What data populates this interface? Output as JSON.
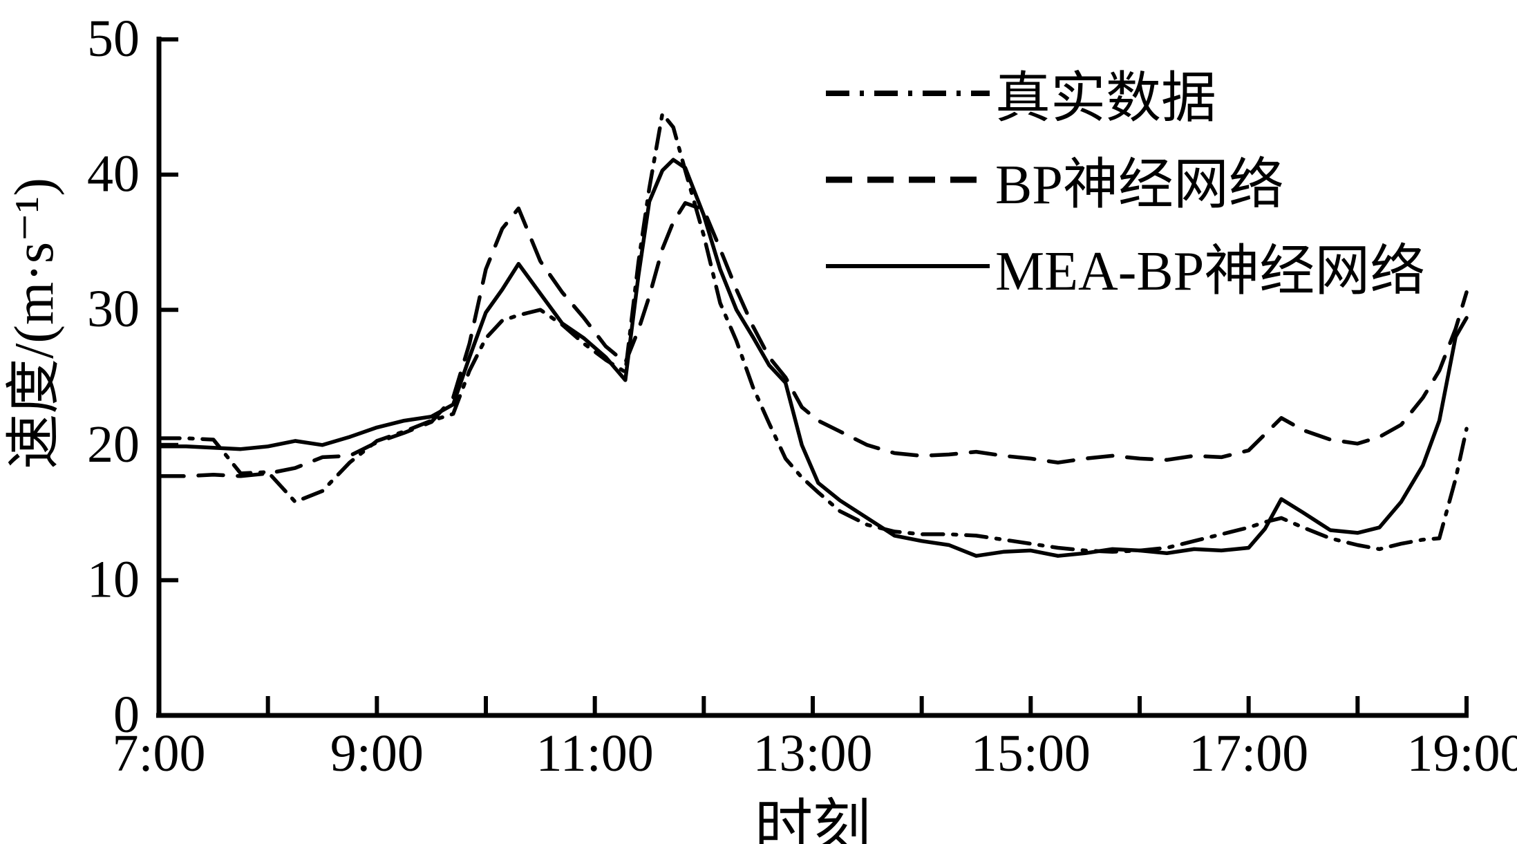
{
  "figure": {
    "background": "#ffffff",
    "line_color": "#000000"
  },
  "axes": {
    "x": {
      "label": "时刻",
      "range": [
        7,
        19
      ],
      "tick_hours": [
        7,
        8,
        9,
        10,
        11,
        12,
        13,
        14,
        15,
        16,
        17,
        18,
        19
      ],
      "labeled_ticks": [
        {
          "hour": 7,
          "text": "7:00"
        },
        {
          "hour": 9,
          "text": "9:00"
        },
        {
          "hour": 11,
          "text": "11:00"
        },
        {
          "hour": 13,
          "text": "13:00"
        },
        {
          "hour": 15,
          "text": "15:00"
        },
        {
          "hour": 17,
          "text": "17:00"
        },
        {
          "hour": 19,
          "text": "19:00"
        }
      ]
    },
    "y": {
      "label": "速度/(m·s⁻¹)",
      "range": [
        0,
        50
      ],
      "ticks": [
        {
          "value": 0,
          "text": "0"
        },
        {
          "value": 10,
          "text": "10"
        },
        {
          "value": 20,
          "text": "20"
        },
        {
          "value": 30,
          "text": "30"
        },
        {
          "value": 40,
          "text": "40"
        },
        {
          "value": 50,
          "text": "50"
        }
      ]
    }
  },
  "legend": {
    "items": [
      {
        "label": "真实数据",
        "style": "dash-dot"
      },
      {
        "label": "BP神经网络",
        "style": "dashed"
      },
      {
        "label": "MEA-BP神经网络",
        "style": "solid"
      }
    ]
  },
  "chart_data": {
    "type": "line",
    "title": "",
    "xlabel": "时刻",
    "ylabel": "速度/(m·s⁻¹)",
    "xlim_hours": [
      7,
      19
    ],
    "ylim": [
      0,
      50
    ],
    "grid": false,
    "legend_position": "upper right, no frame",
    "x_unit": "time of day (decimal hours)",
    "y_unit": "m/s",
    "x": [
      7.0,
      7.25,
      7.5,
      7.75,
      8.0,
      8.25,
      8.5,
      8.75,
      9.0,
      9.25,
      9.5,
      9.7,
      9.85,
      10.0,
      10.15,
      10.3,
      10.5,
      10.7,
      10.9,
      11.1,
      11.28,
      11.4,
      11.5,
      11.62,
      11.72,
      11.83,
      12.0,
      12.15,
      12.3,
      12.45,
      12.6,
      12.75,
      12.9,
      13.05,
      13.25,
      13.5,
      13.75,
      14.0,
      14.25,
      14.5,
      14.75,
      15.0,
      15.25,
      15.5,
      15.75,
      16.0,
      16.25,
      16.5,
      16.75,
      17.0,
      17.15,
      17.3,
      17.5,
      17.75,
      18.0,
      18.2,
      18.4,
      18.6,
      18.75,
      18.9,
      19.0
    ],
    "series": [
      {
        "name": "真实数据",
        "line_style": "dash-dot",
        "color": "#000000",
        "values": [
          20.5,
          20.5,
          20.4,
          17.9,
          18.0,
          15.8,
          16.6,
          18.7,
          20.3,
          21.0,
          21.8,
          22.3,
          25.5,
          27.9,
          29.2,
          29.6,
          30.0,
          28.9,
          27.5,
          26.3,
          25.4,
          33.5,
          39.0,
          44.5,
          43.5,
          40.3,
          35.5,
          30.5,
          27.7,
          24.3,
          21.6,
          19.0,
          17.6,
          16.5,
          15.1,
          14.1,
          13.6,
          13.4,
          13.4,
          13.3,
          13.0,
          12.7,
          12.4,
          12.2,
          12.1,
          12.2,
          12.4,
          12.9,
          13.4,
          13.9,
          14.3,
          14.6,
          13.9,
          13.1,
          12.6,
          12.3,
          12.7,
          13.0,
          13.1,
          17.5,
          21.2
        ]
      },
      {
        "name": "BP神经网络",
        "line_style": "dashed",
        "color": "#000000",
        "values": [
          17.7,
          17.7,
          17.8,
          17.7,
          17.9,
          18.3,
          19.1,
          19.2,
          20.2,
          20.9,
          21.7,
          23.5,
          27.5,
          33.0,
          36.0,
          37.5,
          33.6,
          31.3,
          29.4,
          27.3,
          26.1,
          28.5,
          31.0,
          34.5,
          36.5,
          37.9,
          37.4,
          34.5,
          31.5,
          28.8,
          26.5,
          25.0,
          22.8,
          21.8,
          21.0,
          20.0,
          19.4,
          19.2,
          19.3,
          19.5,
          19.2,
          19.0,
          18.7,
          19.0,
          19.2,
          19.0,
          18.9,
          19.2,
          19.1,
          19.6,
          20.8,
          22.0,
          21.1,
          20.4,
          20.1,
          20.6,
          21.5,
          23.5,
          25.5,
          28.6,
          31.3
        ]
      },
      {
        "name": "MEA-BP神经网络",
        "line_style": "solid",
        "color": "#000000",
        "values": [
          19.9,
          19.9,
          19.8,
          19.7,
          19.9,
          20.3,
          20.0,
          20.6,
          21.3,
          21.8,
          22.1,
          23.0,
          26.5,
          29.8,
          31.5,
          33.4,
          31.2,
          29.0,
          27.9,
          26.5,
          24.8,
          32.5,
          38.0,
          40.3,
          41.1,
          40.5,
          37.0,
          33.0,
          30.0,
          28.0,
          25.9,
          24.6,
          20.0,
          17.2,
          15.9,
          14.6,
          13.3,
          12.9,
          12.6,
          11.8,
          12.1,
          12.2,
          11.8,
          12.0,
          12.3,
          12.2,
          12.0,
          12.3,
          12.2,
          12.4,
          13.8,
          16.0,
          15.0,
          13.7,
          13.5,
          13.9,
          15.8,
          18.5,
          21.8,
          28.0,
          29.4
        ]
      }
    ]
  }
}
